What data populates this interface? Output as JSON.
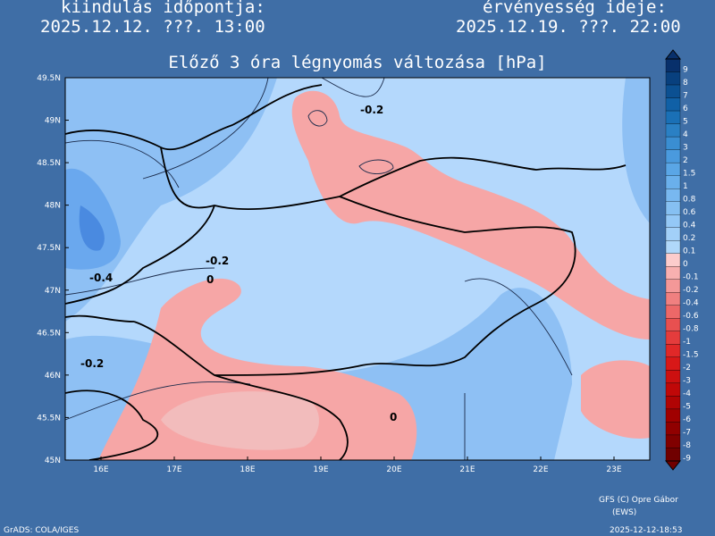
{
  "header": {
    "start_label": "kiindulás időpontja:",
    "start_time": "2025.12.12. ???. 13:00",
    "valid_label": "érvényesség ideje:",
    "valid_time": "2025.12.19. ???. 22:00",
    "title": "Előző 3 óra légnyomás változása [hPa]"
  },
  "map": {
    "lat_labels": [
      "49.5N",
      "49N",
      "48.5N",
      "48N",
      "47.5N",
      "47N",
      "46.5N",
      "46N",
      "45.5N",
      "45N"
    ],
    "lon_labels": [
      "16E",
      "17E",
      "18E",
      "19E",
      "20E",
      "21E",
      "22E",
      "23E"
    ],
    "contour_labels": [
      "-0.2",
      "-0.4",
      "-0.2",
      "0",
      "-0.2",
      "0"
    ]
  },
  "colorbar": {
    "labels": [
      "9",
      "8",
      "7",
      "6",
      "5",
      "4",
      "3",
      "2",
      "1.5",
      "1",
      "0.8",
      "0.6",
      "0.4",
      "0.2",
      "0.1",
      "0",
      "-0.1",
      "-0.2",
      "-0.4",
      "-0.6",
      "-0.8",
      "-1",
      "-1.5",
      "-2",
      "-3",
      "-4",
      "-5",
      "-6",
      "-7",
      "-8",
      "-9"
    ]
  },
  "footer": {
    "credit": "GFS (C) Opre Gábor",
    "credit_sub": "(EWS)",
    "software": "GrADS: COLA/IGES",
    "timestamp": "2025-12-12-18:53"
  }
}
